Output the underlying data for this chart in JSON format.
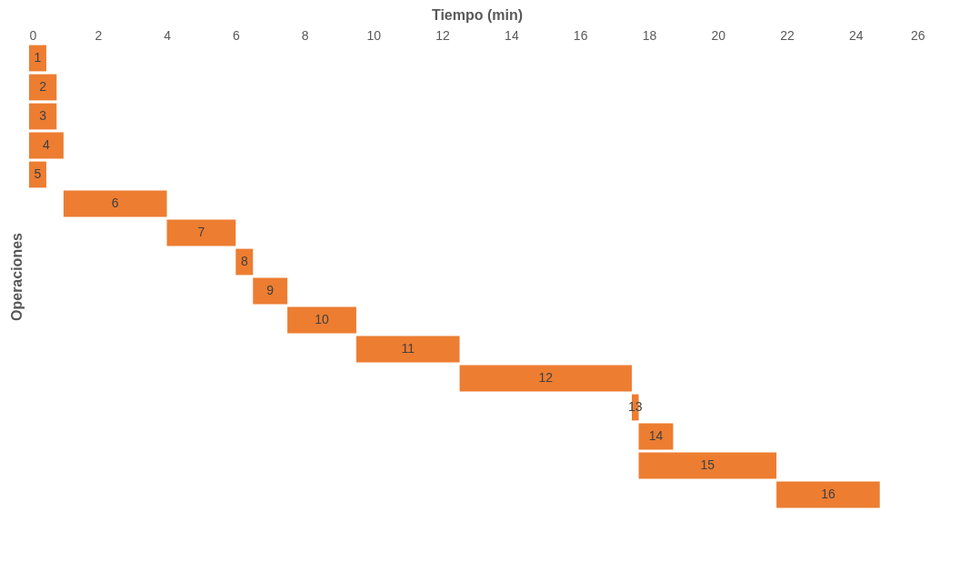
{
  "chart_data": {
    "type": "bar",
    "orientation": "horizontal",
    "xlabel": "Tiempo (min)",
    "ylabel": "Operaciones",
    "categories": [
      "1",
      "2",
      "3",
      "4",
      "5",
      "6",
      "7",
      "8",
      "9",
      "10",
      "11",
      "12",
      "13",
      "14",
      "15",
      "16"
    ],
    "base": [
      0,
      0,
      0,
      0,
      0,
      1,
      4,
      6,
      6.5,
      7.5,
      9.5,
      12.5,
      17.5,
      17.7,
      17.7,
      21.7
    ],
    "values": [
      0.5,
      0.8,
      0.8,
      1,
      0.5,
      3,
      2,
      0.5,
      1,
      2,
      3,
      5,
      0.2,
      1,
      4,
      3
    ],
    "color": "#ed7d31",
    "xlim": [
      0,
      26
    ],
    "xticks": [
      0,
      2,
      4,
      6,
      8,
      10,
      12,
      14,
      16,
      18,
      20,
      22,
      24,
      26
    ],
    "tick_labels": "x",
    "grid": false
  }
}
